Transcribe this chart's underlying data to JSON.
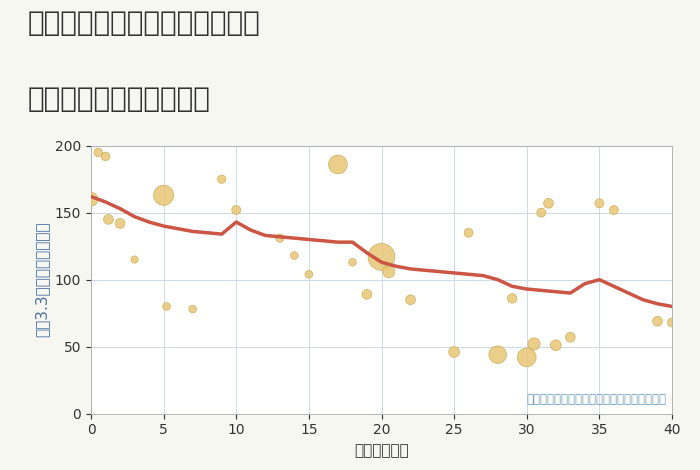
{
  "title_line1": "愛知県名古屋市中村区若宮町の",
  "title_line2": "築年数別中古戸建て価格",
  "xlabel": "築年数（年）",
  "ylabel": "坪（3.3㎡）単価（万円）",
  "background_color": "#f7f7f2",
  "plot_bg_color": "#ffffff",
  "xlim": [
    0,
    40
  ],
  "ylim": [
    0,
    200
  ],
  "xticks": [
    0,
    5,
    10,
    15,
    20,
    25,
    30,
    35,
    40
  ],
  "yticks": [
    0,
    50,
    100,
    150,
    200
  ],
  "scatter_x": [
    0.0,
    0.5,
    1.0,
    1.2,
    2.0,
    3.0,
    5.0,
    5.2,
    7.0,
    9.0,
    10.0,
    13.0,
    14.0,
    15.0,
    17.0,
    18.0,
    19.0,
    20.0,
    20.5,
    22.0,
    25.0,
    26.0,
    28.0,
    29.0,
    30.0,
    30.5,
    31.0,
    31.5,
    32.0,
    33.0,
    35.0,
    36.0,
    39.0,
    40.0
  ],
  "scatter_y": [
    160,
    195,
    192,
    145,
    142,
    115,
    163,
    80,
    78,
    175,
    152,
    131,
    118,
    104,
    186,
    113,
    89,
    117,
    106,
    85,
    46,
    135,
    44,
    86,
    42,
    52,
    150,
    157,
    51,
    57,
    157,
    152,
    69,
    68
  ],
  "scatter_size": [
    180,
    70,
    70,
    90,
    90,
    50,
    380,
    55,
    55,
    65,
    75,
    65,
    55,
    55,
    330,
    55,
    90,
    680,
    140,
    90,
    110,
    75,
    290,
    85,
    330,
    140,
    75,
    90,
    110,
    90,
    75,
    75,
    90,
    75
  ],
  "line_x": [
    0,
    1,
    2,
    3,
    4,
    5,
    6,
    7,
    8,
    9,
    10,
    11,
    12,
    13,
    14,
    15,
    16,
    17,
    18,
    19,
    20,
    21,
    22,
    23,
    24,
    25,
    26,
    27,
    28,
    29,
    30,
    31,
    32,
    33,
    34,
    35,
    36,
    37,
    38,
    39,
    40
  ],
  "line_y": [
    162,
    158,
    153,
    147,
    143,
    140,
    138,
    136,
    135,
    134,
    143,
    137,
    133,
    132,
    131,
    130,
    129,
    128,
    128,
    120,
    113,
    110,
    108,
    107,
    106,
    105,
    104,
    103,
    100,
    95,
    93,
    92,
    91,
    90,
    97,
    100,
    95,
    90,
    85,
    82,
    80
  ],
  "scatter_color": "#e8c87a",
  "scatter_edge_color": "#c9a84c",
  "line_color": "#cc5544",
  "annotation": "円の大きさは、取引のあった物件面積を示す",
  "annotation_color": "#6a9bbf",
  "title_fontsize": 20,
  "axis_label_fontsize": 11,
  "tick_fontsize": 10,
  "ylabel_color": "#4a6fa5",
  "xlabel_color": "#333333",
  "tick_color": "#333333"
}
